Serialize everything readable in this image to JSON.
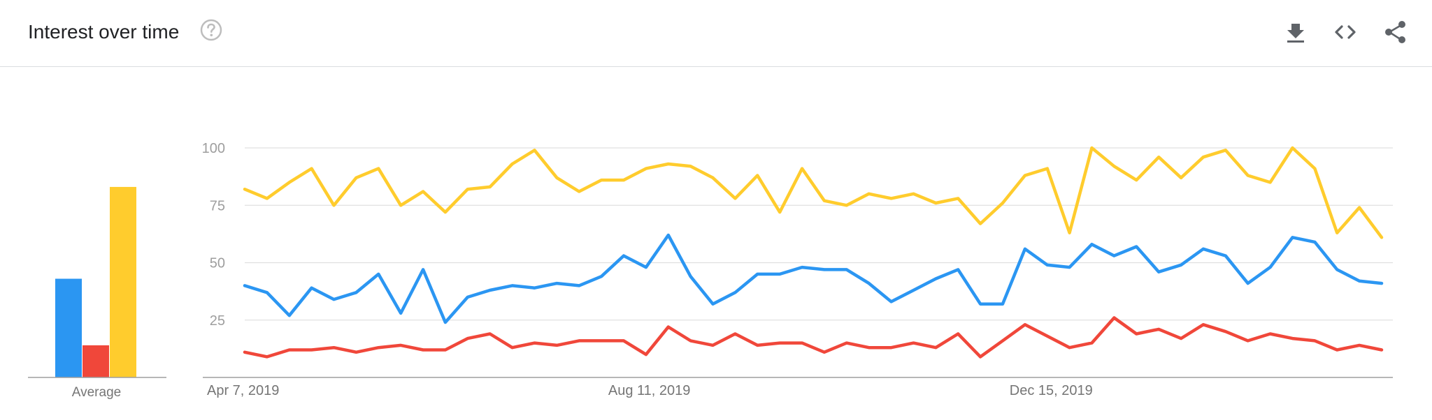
{
  "header": {
    "title": "Interest over time",
    "help_icon": "help-circle-icon",
    "tools": [
      "download-icon",
      "embed-code-icon",
      "share-icon"
    ]
  },
  "colors": {
    "series": [
      "#2b96f2",
      "#f0473a",
      "#ffcc2d"
    ],
    "grid": "#e0e0e0",
    "axis": "#9e9e9e",
    "tick_text": "#9e9e9e",
    "label_text": "#757575"
  },
  "chart_data": [
    {
      "type": "bar",
      "categories": [
        "Average"
      ],
      "series": [
        {
          "values": [
            43
          ]
        },
        {
          "values": [
            14
          ]
        },
        {
          "values": [
            83
          ]
        }
      ],
      "ylim": [
        0,
        100
      ]
    },
    {
      "type": "line",
      "ylim": [
        0,
        100
      ],
      "yticks": [
        25,
        50,
        75,
        100
      ],
      "x_ticks": [
        {
          "index": 0,
          "label": "Apr 7, 2019"
        },
        {
          "index": 18,
          "label": "Aug 11, 2019"
        },
        {
          "index": 36,
          "label": "Dec 15, 2019"
        }
      ],
      "grid": true,
      "legend": "none",
      "series": [
        {
          "values": [
            40,
            37,
            27,
            39,
            34,
            37,
            45,
            28,
            47,
            24,
            35,
            38,
            40,
            39,
            41,
            40,
            44,
            53,
            48,
            62,
            44,
            32,
            37,
            45,
            45,
            48,
            47,
            47,
            41,
            33,
            38,
            43,
            47,
            32,
            32,
            56,
            49,
            48,
            58,
            53,
            57,
            46,
            49,
            56,
            53,
            41,
            48,
            61,
            59,
            47,
            42,
            41
          ]
        },
        {
          "values": [
            11,
            9,
            12,
            12,
            13,
            11,
            13,
            14,
            12,
            12,
            17,
            19,
            13,
            15,
            14,
            16,
            16,
            16,
            10,
            22,
            16,
            14,
            19,
            14,
            15,
            15,
            11,
            15,
            13,
            13,
            15,
            13,
            19,
            9,
            16,
            23,
            18,
            13,
            15,
            26,
            19,
            21,
            17,
            23,
            20,
            16,
            19,
            17,
            16,
            12,
            14,
            12
          ]
        },
        {
          "values": [
            82,
            78,
            85,
            91,
            75,
            87,
            91,
            75,
            81,
            72,
            82,
            83,
            93,
            99,
            87,
            81,
            86,
            86,
            91,
            93,
            92,
            87,
            78,
            88,
            72,
            91,
            77,
            75,
            80,
            78,
            80,
            76,
            78,
            67,
            76,
            88,
            91,
            63,
            100,
            92,
            86,
            96,
            87,
            96,
            99,
            88,
            85,
            100,
            91,
            63,
            74,
            61
          ]
        }
      ]
    }
  ]
}
